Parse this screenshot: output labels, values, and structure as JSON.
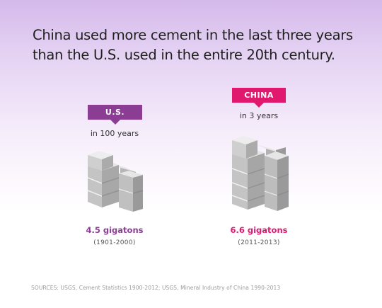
{
  "title": "China used more cement in the last three years than the U.S. used in the entire 20th century.",
  "source": "SOURCES: USGS, Cement Statistics 1900-2012; USGS, Mineral Industry of China 1990-2013",
  "colors": {
    "us": "#8b3d93",
    "china": "#e0196e",
    "block_top": "#e6e6e6",
    "block_front": "#c4c4c4",
    "block_side": "#a3a3a3"
  },
  "chart_data": {
    "type": "table",
    "series": [
      {
        "name": "U.S.",
        "period": "in 100 years",
        "value_label": "4.5 gigatons",
        "years": "(1901-2000)",
        "value": 4.5,
        "unit": "gigatons"
      },
      {
        "name": "CHINA",
        "period": "in 3 years",
        "value_label": "6.6 gigatons",
        "years": "(2011-2013)",
        "value": 6.6,
        "unit": "gigatons"
      }
    ]
  }
}
